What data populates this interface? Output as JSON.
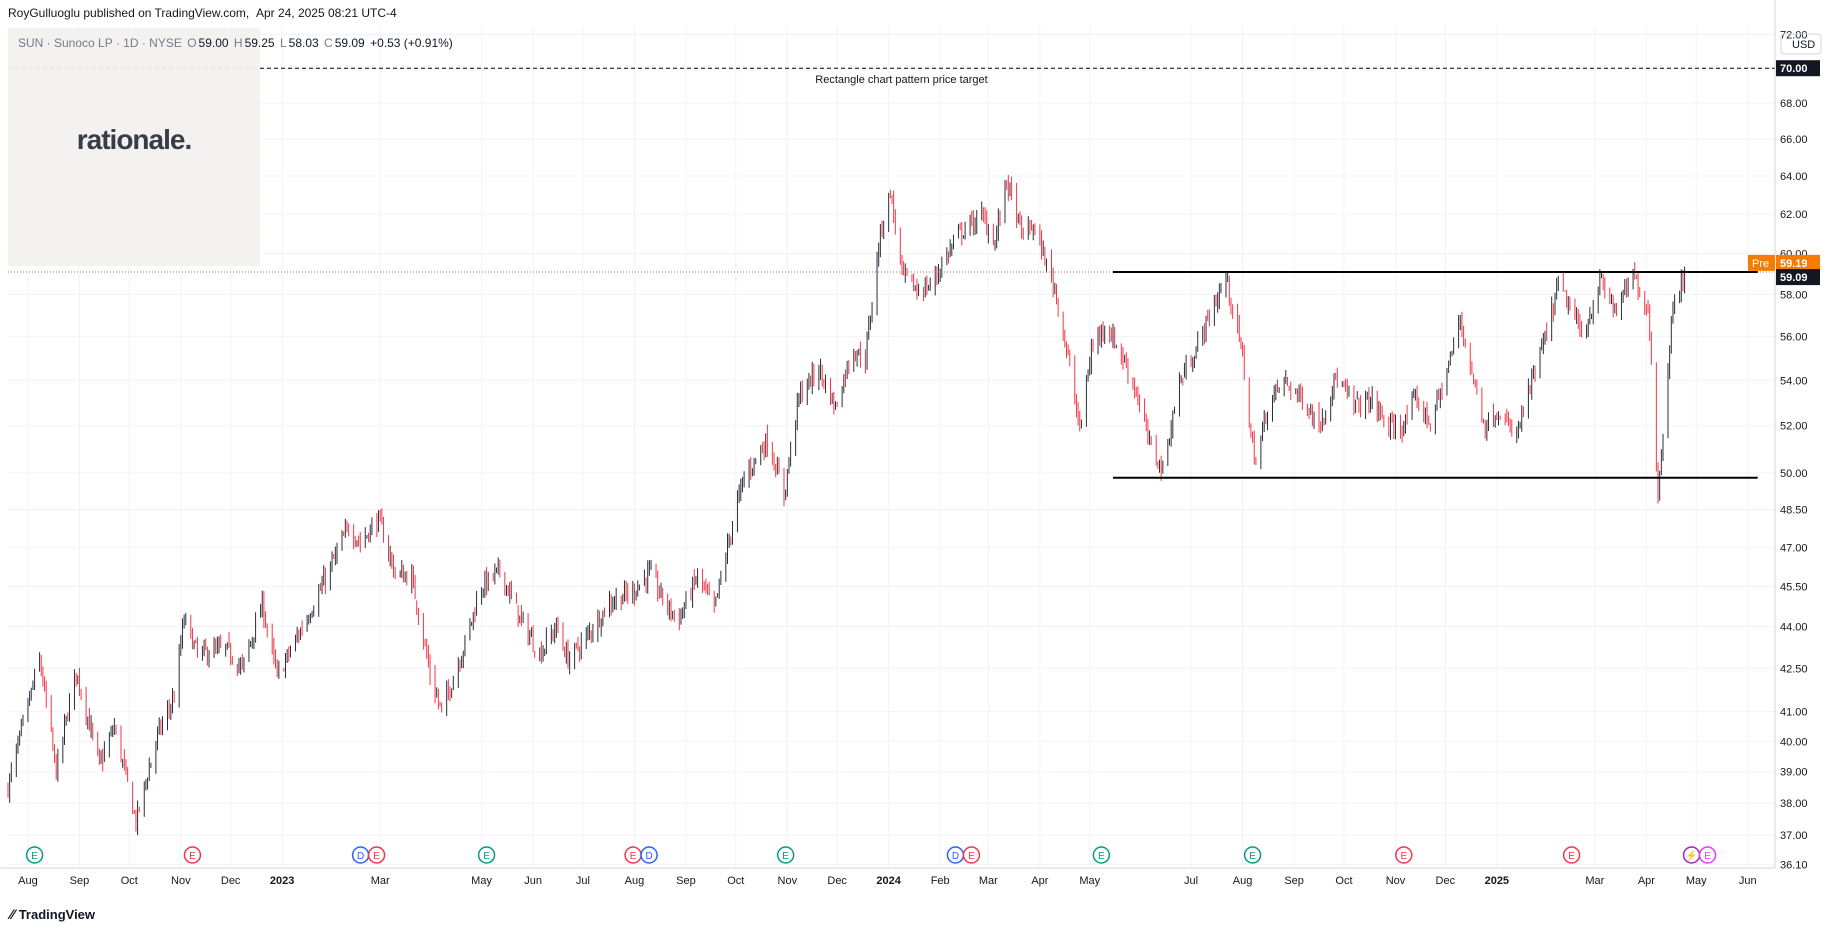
{
  "header": {
    "publisher": "RoyGulluoglu published on TradingView.com,",
    "date": "Apr 24, 2025 08:21 UTC-4"
  },
  "legend": {
    "symbol": "SUN · Sunoco LP · 1D · NYSE",
    "o_label": "O",
    "o": "59.00",
    "h_label": "H",
    "h": "59.25",
    "l_label": "L",
    "l": "58.03",
    "c_label": "C",
    "c": "59.09",
    "change": "+0.53 (+0.91%)"
  },
  "logo": {
    "text": "rationale."
  },
  "footer": {
    "brand": "TradingView",
    "brand_icon": "tradingview-logo-icon"
  },
  "currency": "USD",
  "colors": {
    "up": "#26a69a",
    "down": "#ef5350",
    "candle_up": "#2a2e39",
    "candle_down": "#f23645",
    "price_tag": "#131722",
    "pre_tag": "#f57c00",
    "grid": "#f0f3fa"
  },
  "chart_data": {
    "type": "candlestick",
    "title": "SUN · Sunoco LP · 1D · NYSE",
    "x_range": [
      "2022-07-20",
      "2025-06-15"
    ],
    "y_range": [
      36.0,
      72.5
    ],
    "y_scale": "log",
    "y_ticks": [
      "36.10",
      "37.00",
      "38.00",
      "39.00",
      "40.00",
      "41.00",
      "42.50",
      "44.00",
      "45.50",
      "47.00",
      "48.50",
      "50.00",
      "52.00",
      "54.00",
      "56.00",
      "58.00",
      "60.00",
      "62.00",
      "64.00",
      "66.00",
      "68.00",
      "70.00",
      "72.00"
    ],
    "x_ticks": [
      {
        "label": "Aug",
        "date": "2022-08-01"
      },
      {
        "label": "Sep",
        "date": "2022-09-01"
      },
      {
        "label": "Oct",
        "date": "2022-10-01"
      },
      {
        "label": "Nov",
        "date": "2022-11-01"
      },
      {
        "label": "Dec",
        "date": "2022-12-01"
      },
      {
        "label": "2023",
        "date": "2023-01-01"
      },
      {
        "label": "Mar",
        "date": "2023-03-01"
      },
      {
        "label": "May",
        "date": "2023-05-01"
      },
      {
        "label": "Jun",
        "date": "2023-06-01"
      },
      {
        "label": "Jul",
        "date": "2023-07-01"
      },
      {
        "label": "Aug",
        "date": "2023-08-01"
      },
      {
        "label": "Sep",
        "date": "2023-09-01"
      },
      {
        "label": "Oct",
        "date": "2023-10-01"
      },
      {
        "label": "Nov",
        "date": "2023-11-01"
      },
      {
        "label": "Dec",
        "date": "2023-12-01"
      },
      {
        "label": "2024",
        "date": "2024-01-01"
      },
      {
        "label": "Feb",
        "date": "2024-02-01"
      },
      {
        "label": "Mar",
        "date": "2024-03-01"
      },
      {
        "label": "Apr",
        "date": "2024-04-01"
      },
      {
        "label": "May",
        "date": "2024-05-01"
      },
      {
        "label": "Jul",
        "date": "2024-07-01"
      },
      {
        "label": "Aug",
        "date": "2024-08-01"
      },
      {
        "label": "Sep",
        "date": "2024-09-01"
      },
      {
        "label": "Oct",
        "date": "2024-10-01"
      },
      {
        "label": "Nov",
        "date": "2024-11-01"
      },
      {
        "label": "Dec",
        "date": "2024-12-01"
      },
      {
        "label": "2025",
        "date": "2025-01-01"
      },
      {
        "label": "Mar",
        "date": "2025-03-01"
      },
      {
        "label": "Apr",
        "date": "2025-04-01"
      },
      {
        "label": "May",
        "date": "2025-05-01"
      },
      {
        "label": "Jun",
        "date": "2025-06-01"
      }
    ],
    "price_path": [
      [
        "2022-07-20",
        38.5
      ],
      [
        "2022-08-08",
        42.8
      ],
      [
        "2022-08-18",
        39.0
      ],
      [
        "2022-08-30",
        42.4
      ],
      [
        "2022-09-13",
        39.2
      ],
      [
        "2022-09-22",
        40.5
      ],
      [
        "2022-10-05",
        37.4
      ],
      [
        "2022-10-18",
        40.2
      ],
      [
        "2022-10-28",
        41.5
      ],
      [
        "2022-11-03",
        44.3
      ],
      [
        "2022-11-11",
        43.0
      ],
      [
        "2022-11-28",
        43.2
      ],
      [
        "2022-12-08",
        42.5
      ],
      [
        "2022-12-20",
        44.8
      ],
      [
        "2022-12-29",
        42.2
      ],
      [
        "2023-01-10",
        43.6
      ],
      [
        "2023-01-25",
        45.5
      ],
      [
        "2023-02-10",
        47.8
      ],
      [
        "2023-02-17",
        47.2
      ],
      [
        "2023-02-28",
        48.1
      ],
      [
        "2023-03-10",
        46.0
      ],
      [
        "2023-03-20",
        45.8
      ],
      [
        "2023-04-01",
        42.0
      ],
      [
        "2023-04-07",
        41.0
      ],
      [
        "2023-04-20",
        43.2
      ],
      [
        "2023-05-01",
        45.5
      ],
      [
        "2023-05-12",
        46.1
      ],
      [
        "2023-05-24",
        44.3
      ],
      [
        "2023-06-05",
        43.0
      ],
      [
        "2023-06-15",
        44.0
      ],
      [
        "2023-06-22",
        42.8
      ],
      [
        "2023-07-03",
        43.6
      ],
      [
        "2023-07-17",
        44.9
      ],
      [
        "2023-07-31",
        45.3
      ],
      [
        "2023-08-10",
        46.0
      ],
      [
        "2023-08-21",
        44.7
      ],
      [
        "2023-08-28",
        44.3
      ],
      [
        "2023-09-08",
        45.9
      ],
      [
        "2023-09-18",
        44.6
      ],
      [
        "2023-10-02",
        48.8
      ],
      [
        "2023-10-06",
        49.8
      ],
      [
        "2023-10-20",
        51.4
      ],
      [
        "2023-10-30",
        49.1
      ],
      [
        "2023-11-08",
        53.3
      ],
      [
        "2023-11-20",
        54.5
      ],
      [
        "2023-11-30",
        52.8
      ],
      [
        "2023-12-10",
        55.4
      ],
      [
        "2023-12-18",
        55.0
      ],
      [
        "2023-12-27",
        61.0
      ],
      [
        "2024-01-02",
        63.2
      ],
      [
        "2024-01-09",
        59.0
      ],
      [
        "2024-01-18",
        58.2
      ],
      [
        "2024-01-26",
        58.4
      ],
      [
        "2024-02-03",
        59.6
      ],
      [
        "2024-02-12",
        61.0
      ],
      [
        "2024-02-26",
        61.9
      ],
      [
        "2024-03-05",
        60.6
      ],
      [
        "2024-03-12",
        63.8
      ],
      [
        "2024-03-21",
        61.0
      ],
      [
        "2024-03-28",
        61.4
      ],
      [
        "2024-04-10",
        58.3
      ],
      [
        "2024-04-18",
        55.0
      ],
      [
        "2024-04-25",
        51.8
      ],
      [
        "2024-05-02",
        55.4
      ],
      [
        "2024-05-10",
        56.6
      ],
      [
        "2024-05-20",
        55.2
      ],
      [
        "2024-05-29",
        53.5
      ],
      [
        "2024-06-06",
        51.2
      ],
      [
        "2024-06-14",
        50.1
      ],
      [
        "2024-06-24",
        53.9
      ],
      [
        "2024-07-04",
        55.4
      ],
      [
        "2024-07-12",
        57.0
      ],
      [
        "2024-07-22",
        58.8
      ],
      [
        "2024-08-01",
        55.1
      ],
      [
        "2024-08-06",
        51.5
      ],
      [
        "2024-08-09",
        50.4
      ],
      [
        "2024-08-16",
        52.8
      ],
      [
        "2024-08-25",
        54.0
      ],
      [
        "2024-09-06",
        53.2
      ],
      [
        "2024-09-16",
        52.0
      ],
      [
        "2024-09-26",
        54.1
      ],
      [
        "2024-10-07",
        52.9
      ],
      [
        "2024-10-18",
        53.1
      ],
      [
        "2024-10-28",
        51.9
      ],
      [
        "2024-11-06",
        52.0
      ],
      [
        "2024-11-13",
        53.2
      ],
      [
        "2024-11-22",
        52.1
      ],
      [
        "2024-12-01",
        54.1
      ],
      [
        "2024-12-10",
        56.8
      ],
      [
        "2024-12-18",
        54.0
      ],
      [
        "2024-12-25",
        52.0
      ],
      [
        "2025-01-02",
        52.7
      ],
      [
        "2025-01-12",
        51.4
      ],
      [
        "2025-01-22",
        53.9
      ],
      [
        "2025-02-01",
        56.4
      ],
      [
        "2025-02-07",
        58.5
      ],
      [
        "2025-02-13",
        57.5
      ],
      [
        "2025-02-22",
        56.0
      ],
      [
        "2025-03-04",
        58.6
      ],
      [
        "2025-03-14",
        57.2
      ],
      [
        "2025-03-24",
        58.9
      ],
      [
        "2025-04-02",
        57.3
      ],
      [
        "2025-04-04",
        55.0
      ],
      [
        "2025-04-08",
        49.0
      ],
      [
        "2025-04-11",
        51.8
      ],
      [
        "2025-04-16",
        56.7
      ],
      [
        "2025-04-22",
        58.6
      ],
      [
        "2025-04-24",
        59.09
      ]
    ],
    "last_close": 59.09,
    "pre_market": 59.19,
    "pre_label": "Pre",
    "resistance": {
      "value": 59.09,
      "start": "2024-05-15",
      "end": "2025-06-07"
    },
    "support": {
      "value": 49.8,
      "start": "2024-05-15",
      "end": "2025-06-07"
    },
    "target": {
      "value": 70.0,
      "label": "Rectangle chart pattern price target"
    },
    "events": [
      {
        "date": "2022-08-05",
        "letters": [
          "E"
        ],
        "kinds": [
          "earnings-up"
        ]
      },
      {
        "date": "2022-11-08",
        "letters": [
          "E"
        ],
        "kinds": [
          "earnings-down"
        ]
      },
      {
        "date": "2023-02-22",
        "letters": [
          "D",
          "E"
        ],
        "kinds": [
          "dividend",
          "earnings-down"
        ]
      },
      {
        "date": "2023-05-04",
        "letters": [
          "E"
        ],
        "kinds": [
          "earnings-up"
        ]
      },
      {
        "date": "2023-08-05",
        "letters": [
          "E",
          "D"
        ],
        "kinds": [
          "earnings-down",
          "dividend"
        ]
      },
      {
        "date": "2023-10-31",
        "letters": [
          "E"
        ],
        "kinds": [
          "earnings-up"
        ]
      },
      {
        "date": "2024-02-15",
        "letters": [
          "D",
          "E"
        ],
        "kinds": [
          "dividend",
          "earnings-down"
        ]
      },
      {
        "date": "2024-05-08",
        "letters": [
          "E"
        ],
        "kinds": [
          "earnings-up"
        ]
      },
      {
        "date": "2024-08-07",
        "letters": [
          "E"
        ],
        "kinds": [
          "earnings-up"
        ]
      },
      {
        "date": "2024-11-06",
        "letters": [
          "E"
        ],
        "kinds": [
          "earnings-down"
        ]
      },
      {
        "date": "2025-02-15",
        "letters": [
          "E"
        ],
        "kinds": [
          "earnings-down"
        ]
      },
      {
        "date": "2025-05-03",
        "letters": [
          "⚡",
          "E"
        ],
        "kinds": [
          "split",
          "earnings-future"
        ]
      }
    ]
  }
}
